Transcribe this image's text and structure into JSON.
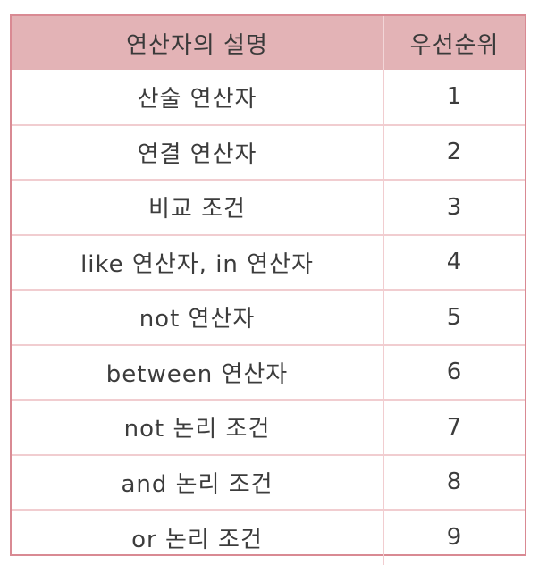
{
  "table": {
    "headers": [
      "연산자의 설명",
      "우선순위"
    ],
    "rows": [
      [
        "산술 연산자",
        "1"
      ],
      [
        "연결 연산자",
        "2"
      ],
      [
        "비교 조건",
        "3"
      ],
      [
        "like 연산자, in 연산자",
        "4"
      ],
      [
        "not 연산자",
        "5"
      ],
      [
        "between 연산자",
        "6"
      ],
      [
        "not 논리 조건",
        "7"
      ],
      [
        "and 논리 조건",
        "8"
      ],
      [
        "or 논리 조건",
        "9"
      ]
    ]
  },
  "colors": {
    "header_bg": "#e3b3b6",
    "border": "#d98a93",
    "row_divider": "#f1cdd0"
  }
}
